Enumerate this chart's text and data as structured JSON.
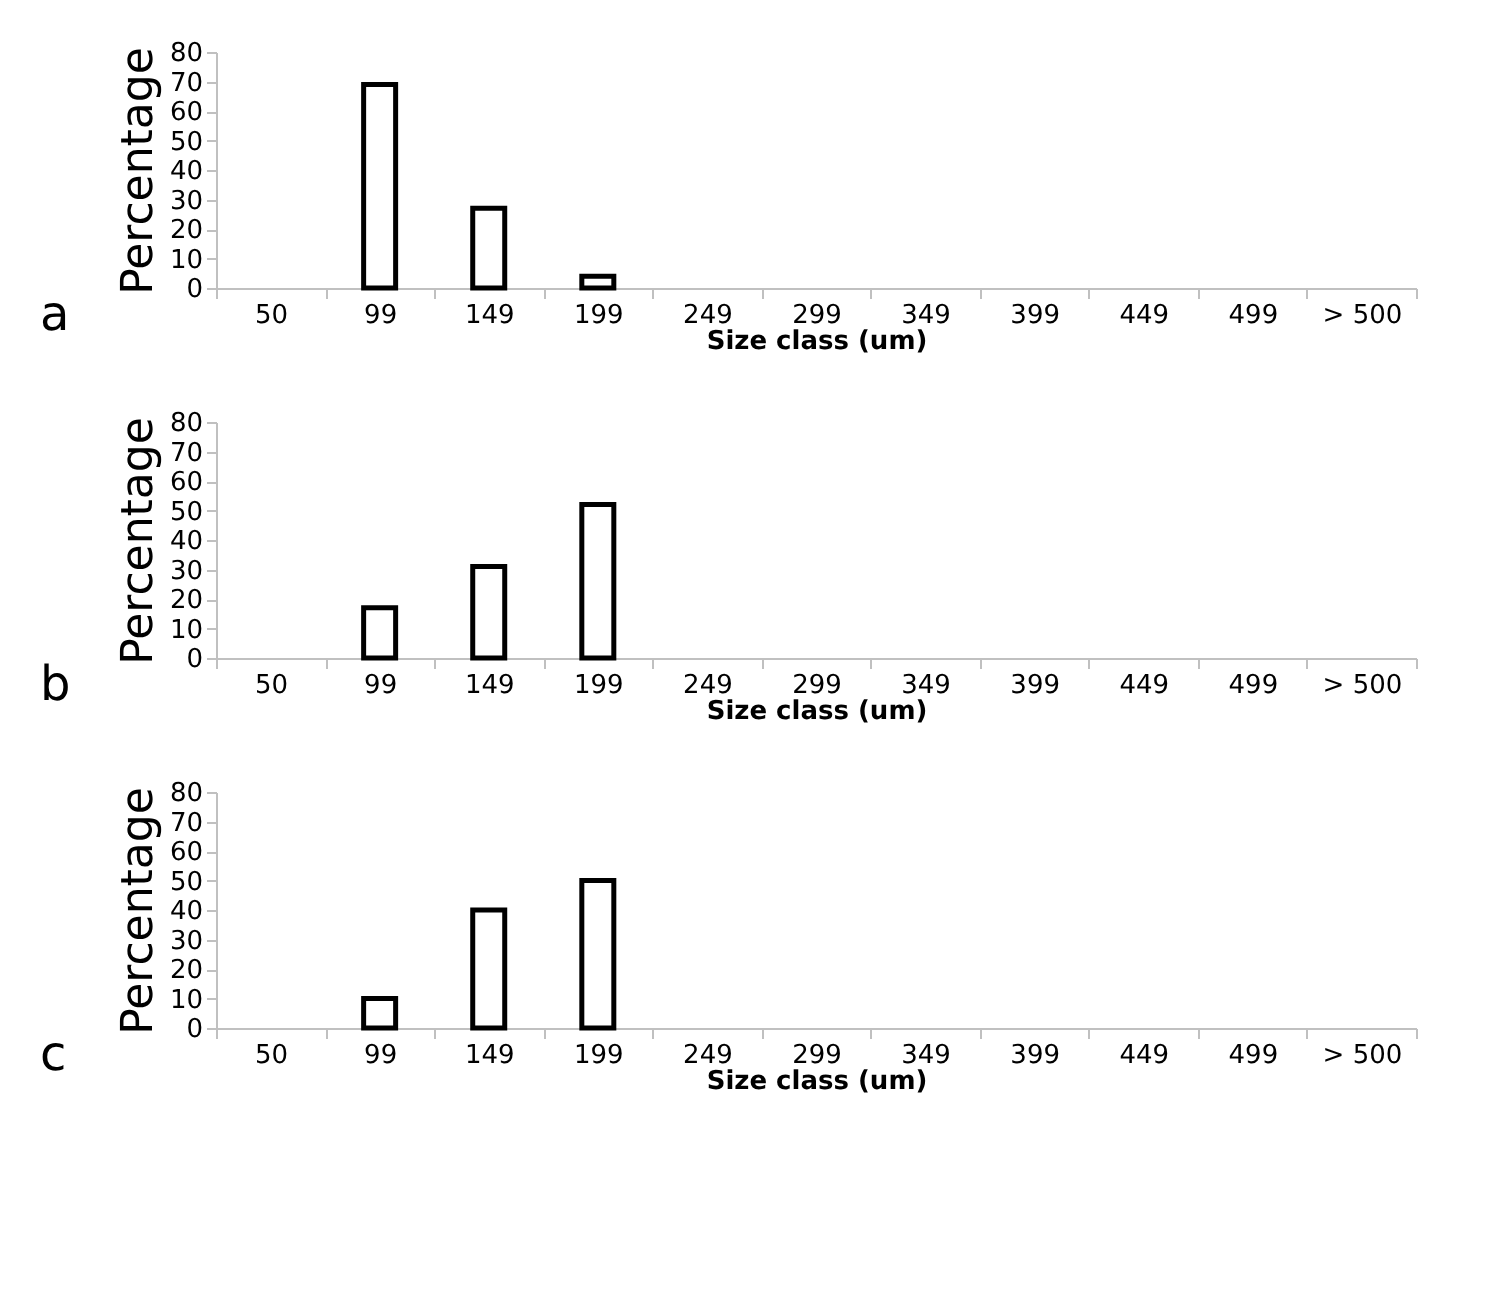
{
  "chart_data": [
    {
      "type": "bar",
      "categories": [
        "50",
        "99",
        "149",
        "199",
        "249",
        "299",
        "349",
        "399",
        "449",
        "499",
        "> 500"
      ],
      "values": [
        null,
        69,
        27,
        4,
        null,
        null,
        null,
        null,
        null,
        null,
        null
      ],
      "color": "#ffffff",
      "xlabel": "Size class (um)",
      "ylabel": "Percentage",
      "ylim": [
        0,
        80
      ],
      "yticks": [
        0,
        10,
        20,
        30,
        40,
        50,
        60,
        70,
        80
      ],
      "grid": false,
      "annotations": [
        "a"
      ]
    },
    {
      "type": "bar",
      "categories": [
        "50",
        "99",
        "149",
        "199",
        "249",
        "299",
        "349",
        "399",
        "449",
        "499",
        "> 500"
      ],
      "values": [
        null,
        17,
        31,
        52,
        null,
        null,
        null,
        null,
        null,
        null,
        null
      ],
      "color": "#ffffff",
      "xlabel": "Size class (um)",
      "ylabel": "Percentage",
      "ylim": [
        0,
        80
      ],
      "yticks": [
        0,
        10,
        20,
        30,
        40,
        50,
        60,
        70,
        80
      ],
      "grid": false,
      "annotations": [
        "b"
      ]
    },
    {
      "type": "bar",
      "categories": [
        "50",
        "99",
        "149",
        "199",
        "249",
        "299",
        "349",
        "399",
        "449",
        "499",
        "> 500"
      ],
      "values": [
        null,
        10,
        40,
        50,
        null,
        null,
        null,
        null,
        null,
        null,
        null
      ],
      "color": "#ffffff",
      "xlabel": "Size class (um)",
      "ylabel": "Percentage",
      "ylim": [
        0,
        80
      ],
      "yticks": [
        0,
        10,
        20,
        30,
        40,
        50,
        60,
        70,
        80
      ],
      "grid": false,
      "annotations": [
        "c"
      ]
    }
  ]
}
